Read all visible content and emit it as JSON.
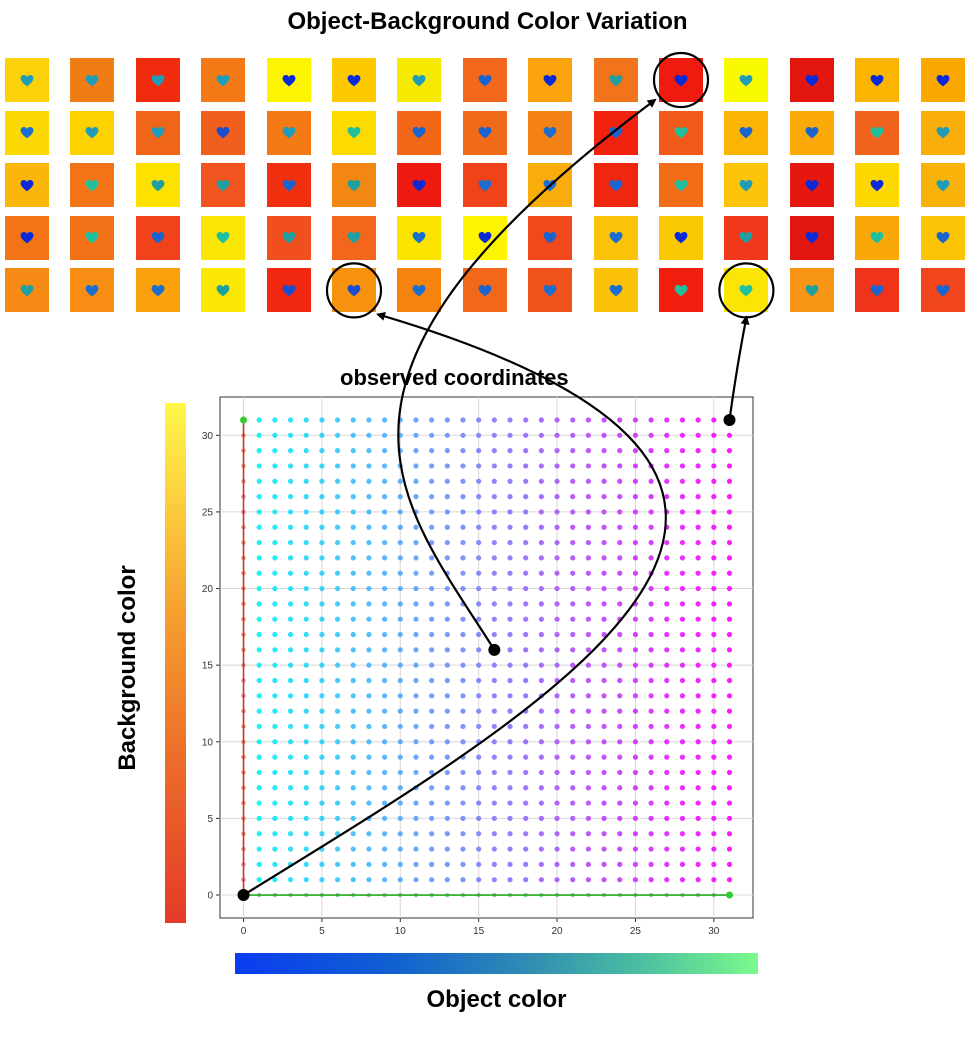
{
  "title": "Object-Background Color Variation",
  "annotation": "observed coordinates",
  "x_label": "Object color",
  "y_label": "Background color",
  "grid": {
    "rows": 5,
    "cols": 15,
    "backgrounds": [
      [
        "#fbd10a",
        "#f07d14",
        "#f12c0e",
        "#f47a16",
        "#fdf500",
        "#fdc900",
        "#f7ea02",
        "#f2681c",
        "#fba30c",
        "#f1731a",
        "#ee1b0e",
        "#f9f900",
        "#e3160e",
        "#fbb400",
        "#faa800"
      ],
      [
        "#fcd804",
        "#fdd200",
        "#f06618",
        "#f05f1e",
        "#f37a14",
        "#fdda00",
        "#f16717",
        "#f06a18",
        "#f38115",
        "#f1220e",
        "#f25a1c",
        "#fbb304",
        "#fbaa09",
        "#f1631c",
        "#f9ae0c"
      ],
      [
        "#fbb709",
        "#f27417",
        "#fde200",
        "#f1541e",
        "#f1300f",
        "#f28714",
        "#ee1a10",
        "#f0431a",
        "#f8ad0c",
        "#ef270e",
        "#f26d16",
        "#fbc408",
        "#e5170e",
        "#fdd801",
        "#f9b20a"
      ],
      [
        "#f27417",
        "#f27117",
        "#f2421c",
        "#fbe504",
        "#f14f1e",
        "#f4661c",
        "#fbe500",
        "#fdf500",
        "#f1491b",
        "#fbc308",
        "#fbc804",
        "#f0391a",
        "#e1160e",
        "#faa70a",
        "#fbc404"
      ],
      [
        "#f58a14",
        "#f88d13",
        "#faa00a",
        "#fbe804",
        "#f1280f",
        "#f7920e",
        "#f6830e",
        "#f1681a",
        "#f0531c",
        "#fbc008",
        "#f01e0f",
        "#fbe504",
        "#f89516",
        "#f0341a",
        "#f1461c"
      ]
    ],
    "hearts": [
      [
        "#1e9cb8",
        "#1e9cb8",
        "#1e9cb8",
        "#1e9cb8",
        "#0a2ad8",
        "#0a2ad8",
        "#1e9cb8",
        "#1a64d0",
        "#0a2ad8",
        "#1ea0a0",
        "#0a2ad8",
        "#1e9cb8",
        "#0a2ad8",
        "#0a2ad8",
        "#0a2ad8"
      ],
      [
        "#1a6ed0",
        "#1e9cb8",
        "#1e9cb8",
        "#1a4ed0",
        "#1e9cb8",
        "#1ec0a0",
        "#1a64d0",
        "#1a64d0",
        "#1a6ed0",
        "#1a64d0",
        "#1ec0a0",
        "#1a64d0",
        "#1a64d0",
        "#1ec0a0",
        "#1e9cb8"
      ],
      [
        "#0a2ad8",
        "#1ec0a0",
        "#1ea0a0",
        "#1ea0a0",
        "#1a64d0",
        "#1ea0a0",
        "#0a2ad8",
        "#1a6ed0",
        "#1a6ed0",
        "#1a64d0",
        "#1ec0a0",
        "#1e9cb8",
        "#0a2ad8",
        "#0a2ad8",
        "#1e9cb8"
      ],
      [
        "#0a2ad8",
        "#1ec0a0",
        "#1a64d0",
        "#1ec0a0",
        "#1ea0a0",
        "#1ea0a0",
        "#1a6ed0",
        "#0a2ad8",
        "#1a64d0",
        "#1a6ed0",
        "#0a2ad8",
        "#1ea0a0",
        "#0a2ad8",
        "#1ec0a0",
        "#1a64d0"
      ],
      [
        "#1ea0a0",
        "#1a6ed0",
        "#1a6ed0",
        "#1ea0a0",
        "#1a4ed0",
        "#1a4ed0",
        "#1a6ed0",
        "#1a64d0",
        "#1a6ed0",
        "#1a6ed0",
        "#1ec0a0",
        "#1ec0a0",
        "#1ea0a0",
        "#1a64d0",
        "#1a64d0"
      ]
    ],
    "highlighted": [
      [
        0,
        10
      ],
      [
        4,
        5
      ],
      [
        4,
        11
      ]
    ]
  },
  "colorbars": {
    "background": [
      "#fff84a",
      "#f6a030",
      "#ec6a2a",
      "#e43a28"
    ],
    "object": [
      "#0a3cf0",
      "#1060d0",
      "#2f8ab4",
      "#4cc0a0",
      "#7afa8c"
    ]
  },
  "chart_data": {
    "type": "scatter",
    "title": "observed coordinates",
    "xlabel": "Object color",
    "ylabel": "Background color",
    "x": {
      "min": 0,
      "max": 31,
      "step": 1
    },
    "y": {
      "min": 0,
      "max": 31,
      "step": 1
    },
    "xlim": [
      -1.5,
      32.5
    ],
    "ylim": [
      -1.5,
      32.5
    ],
    "xticks": [
      0,
      5,
      10,
      15,
      20,
      25,
      30
    ],
    "yticks": [
      0,
      5,
      10,
      15,
      20,
      25,
      30
    ],
    "grid": true,
    "point_color_start": "#00f5f5",
    "point_color_end": "#ff00ff",
    "axis_point_color": "#33cc33",
    "x_axis_line_color": "#22aa22",
    "y_axis_line_color": "#cc3322",
    "highlighted_points": [
      {
        "x": 0,
        "y": 0,
        "tile": [
          4,
          5
        ]
      },
      {
        "x": 16,
        "y": 16,
        "tile": [
          0,
          10
        ]
      },
      {
        "x": 31,
        "y": 31,
        "tile": [
          4,
          11
        ]
      }
    ]
  }
}
